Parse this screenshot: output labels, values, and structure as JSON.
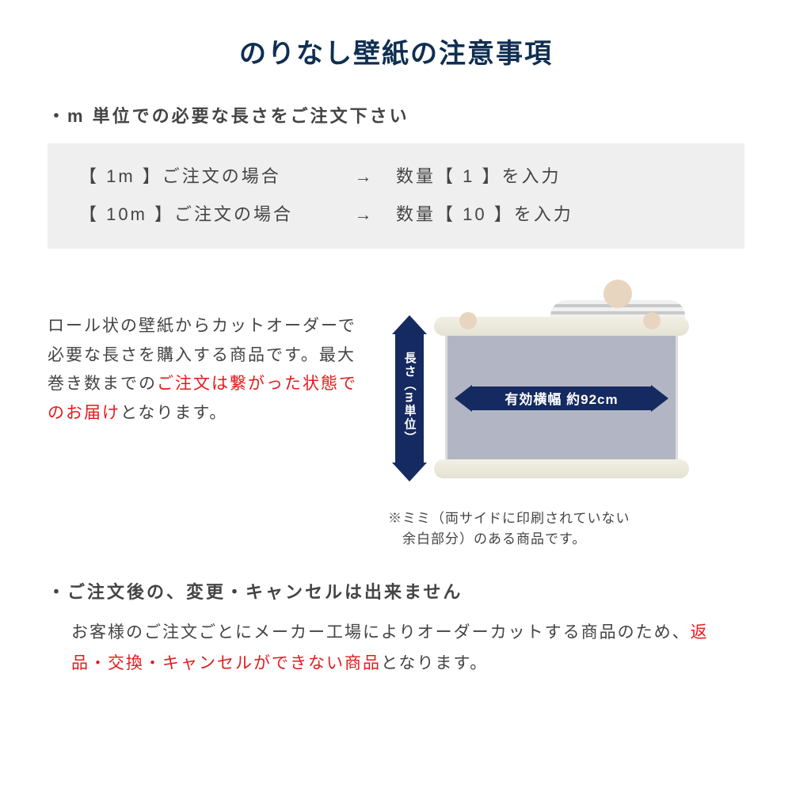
{
  "colors": {
    "title": "#0f2f52",
    "body": "#444444",
    "emphasis": "#e21b1b",
    "example_bg": "#efefef",
    "arrow_fill": "#152a60",
    "sheet": "#b2b6c4",
    "roll": "#e8e6da"
  },
  "title": "のりなし壁紙の注意事項",
  "bullet1": "・m 単位での必要な長さをご注文下さい",
  "examples": [
    {
      "left": "【 1m 】ご注文の場合",
      "arrow": "→",
      "right": "数量【 1 】を入力"
    },
    {
      "left": "【 10m 】ご注文の場合",
      "arrow": "→",
      "right": "数量【 10 】を入力"
    }
  ],
  "mid_text": {
    "line1": "ロール状の壁紙からカットオーダーで必要な長さを購入する商品です。最大巻き数までの",
    "em": "ご注文は繋がった状態でのお届け",
    "line3": "となります。"
  },
  "diagram": {
    "v_label": "長さ（m単位）",
    "h_label": "有効横幅 約92cm"
  },
  "note": "※ミミ（両サイドに印刷されていない\n　余白部分）のある商品です。",
  "bullet2": "・ご注文後の、変更・キャンセルは出来ません",
  "para2": {
    "pre": "お客様のご注文ごとにメーカー工場によりオーダーカットする商品のため、",
    "em": "返品・交換・キャンセルができない商品",
    "post": "となります。"
  }
}
